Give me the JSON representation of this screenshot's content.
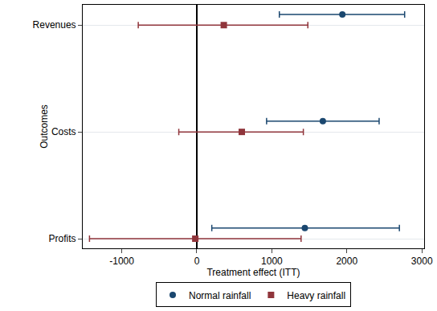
{
  "chart_data": {
    "type": "scatter",
    "orientation": "horizontal",
    "categories": [
      "Revenues",
      "Costs",
      "Profits"
    ],
    "xlabel": "Treatment effect (ITT)",
    "ylabel": "Outcomes",
    "xlim": [
      -1520,
      3030
    ],
    "xticks": [
      -1000,
      0,
      1000,
      2000,
      3000
    ],
    "grid": true,
    "legend": "bottom",
    "series": [
      {
        "name": "Normal rainfall",
        "color": "#1a476f",
        "marker": "circle",
        "values": [
          1940,
          1680,
          1440
        ],
        "ci_low": [
          1100,
          930,
          200
        ],
        "ci_high": [
          2770,
          2430,
          2700
        ]
      },
      {
        "name": "Heavy rainfall",
        "color": "#90353b",
        "marker": "square",
        "values": [
          360,
          600,
          -20
        ],
        "ci_low": [
          -780,
          -240,
          -1430
        ],
        "ci_high": [
          1480,
          1420,
          1390
        ]
      }
    ]
  }
}
